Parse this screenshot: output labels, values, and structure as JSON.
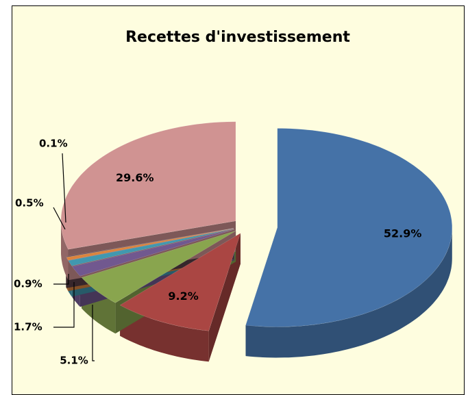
{
  "chart_data": {
    "type": "pie",
    "title": "Recettes d'investissement",
    "values": [
      52.9,
      9.2,
      5.1,
      1.7,
      0.9,
      0.5,
      0.1,
      29.6
    ],
    "value_labels": [
      "52.9%",
      "9.2%",
      "5.1%",
      "1.7%",
      "0.9%",
      "0.5%",
      "0.1%",
      "29.6%"
    ],
    "colors": [
      "#4572a7",
      "#aa4643",
      "#89a54e",
      "#71588f",
      "#4198af",
      "#db843d",
      "#5a3f48",
      "#d09392"
    ]
  }
}
